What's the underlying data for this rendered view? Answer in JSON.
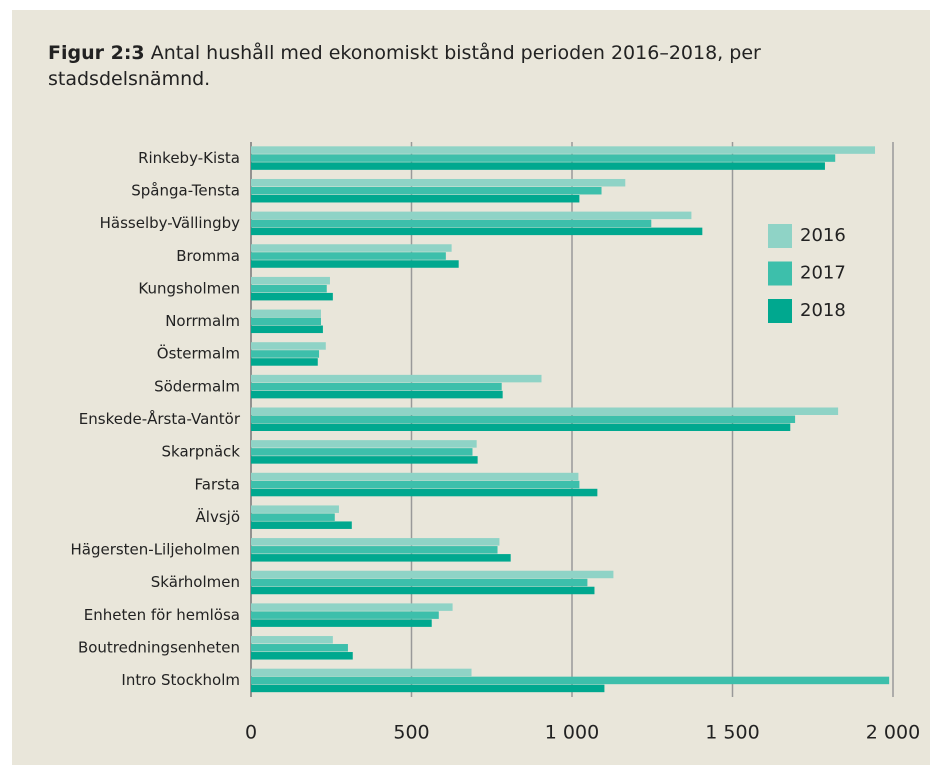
{
  "chart_data": {
    "type": "bar",
    "orientation": "horizontal",
    "figure_label": "Figur 2:3",
    "title": "Antal hushåll med ekonomiskt bistånd perioden 2016–2018, per stadsdelsnämnd.",
    "categories": [
      "Rinkeby-Kista",
      "Spånga-Tensta",
      "Hässelby-Vällingby",
      "Bromma",
      "Kungsholmen",
      "Norrmalm",
      "Östermalm",
      "Södermalm",
      "Enskede-Årsta-Vantör",
      "Skarpnäck",
      "Farsta",
      "Älvsjö",
      "Hägersten-Liljeholmen",
      "Skärholmen",
      "Enheten för hemlösa",
      "Boutredningsenheten",
      "Intro Stockholm"
    ],
    "series": [
      {
        "name": "2016",
        "color": "#8fd3c6",
        "values": [
          1944,
          1166,
          1372,
          625,
          246,
          218,
          233,
          905,
          1829,
          703,
          1020,
          274,
          774,
          1129,
          628,
          255,
          687
        ]
      },
      {
        "name": "2017",
        "color": "#3dbfab",
        "values": [
          1820,
          1092,
          1247,
          607,
          236,
          218,
          212,
          781,
          1695,
          690,
          1023,
          261,
          768,
          1048,
          585,
          302,
          1988
        ]
      },
      {
        "name": "2018",
        "color": "#00a88f",
        "values": [
          1788,
          1023,
          1406,
          647,
          255,
          224,
          208,
          784,
          1680,
          706,
          1079,
          314,
          809,
          1070,
          563,
          317,
          1101
        ]
      }
    ],
    "xlim": [
      0,
      2000
    ],
    "xticks": [
      0,
      500,
      {
        "value": 1000,
        "label": "1 000"
      },
      {
        "value": 1500,
        "label": "1 500"
      },
      {
        "value": 2000,
        "label": "2 000"
      }
    ],
    "grid": true
  }
}
